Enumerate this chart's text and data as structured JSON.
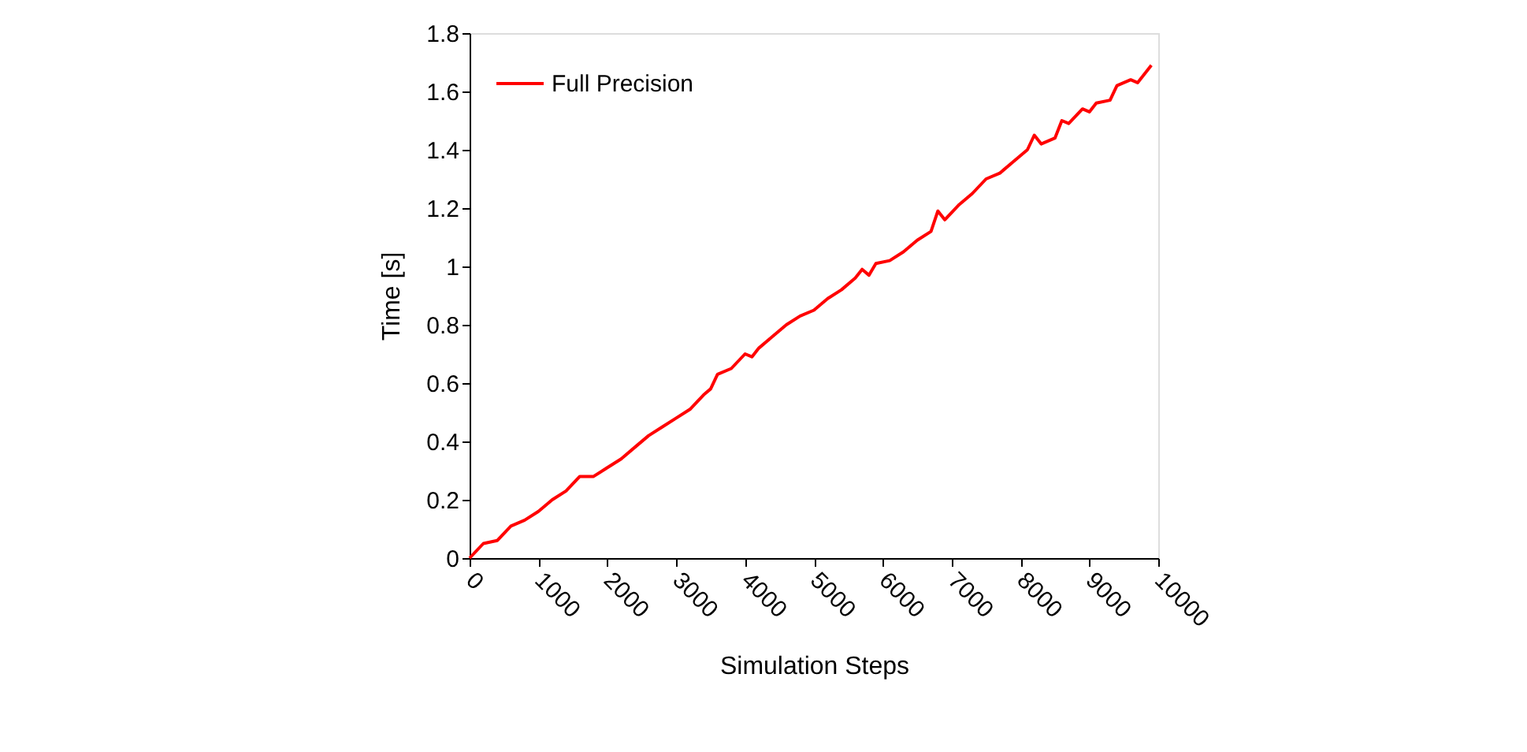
{
  "chart_data": {
    "type": "line",
    "xlabel": "Simulation Steps",
    "ylabel": "Time [s]",
    "x": [
      0,
      200,
      400,
      600,
      800,
      1000,
      1200,
      1400,
      1600,
      1800,
      2000,
      2200,
      2400,
      2600,
      2800,
      3000,
      3200,
      3400,
      3500,
      3600,
      3800,
      4000,
      4100,
      4200,
      4400,
      4600,
      4800,
      5000,
      5200,
      5400,
      5600,
      5700,
      5800,
      5900,
      6100,
      6300,
      6500,
      6700,
      6800,
      6900,
      7100,
      7300,
      7500,
      7700,
      7900,
      8100,
      8200,
      8300,
      8500,
      8600,
      8700,
      8900,
      9000,
      9100,
      9300,
      9400,
      9600,
      9700,
      9900
    ],
    "series": [
      {
        "name": "Full Precision",
        "color": "#ff0000",
        "values": [
          0,
          0.05,
          0.06,
          0.11,
          0.13,
          0.16,
          0.2,
          0.23,
          0.28,
          0.28,
          0.31,
          0.34,
          0.38,
          0.42,
          0.45,
          0.48,
          0.51,
          0.56,
          0.58,
          0.63,
          0.65,
          0.7,
          0.69,
          0.72,
          0.76,
          0.8,
          0.83,
          0.85,
          0.89,
          0.92,
          0.96,
          0.99,
          0.97,
          1.01,
          1.02,
          1.05,
          1.09,
          1.12,
          1.19,
          1.16,
          1.21,
          1.25,
          1.3,
          1.32,
          1.36,
          1.4,
          1.45,
          1.42,
          1.44,
          1.5,
          1.49,
          1.54,
          1.53,
          1.56,
          1.57,
          1.62,
          1.64,
          1.63,
          1.69
        ]
      }
    ],
    "xlim": [
      0,
      10000
    ],
    "xticks": [
      0,
      1000,
      2000,
      3000,
      4000,
      5000,
      6000,
      7000,
      8000,
      9000,
      10000
    ],
    "ylim": [
      0,
      1.8
    ],
    "yticks": [
      0,
      0.2,
      0.4,
      0.6,
      0.8,
      1,
      1.2,
      1.4,
      1.6,
      1.8
    ],
    "grid": false,
    "legend": "top left",
    "marker": "none",
    "line_style": "solid"
  }
}
